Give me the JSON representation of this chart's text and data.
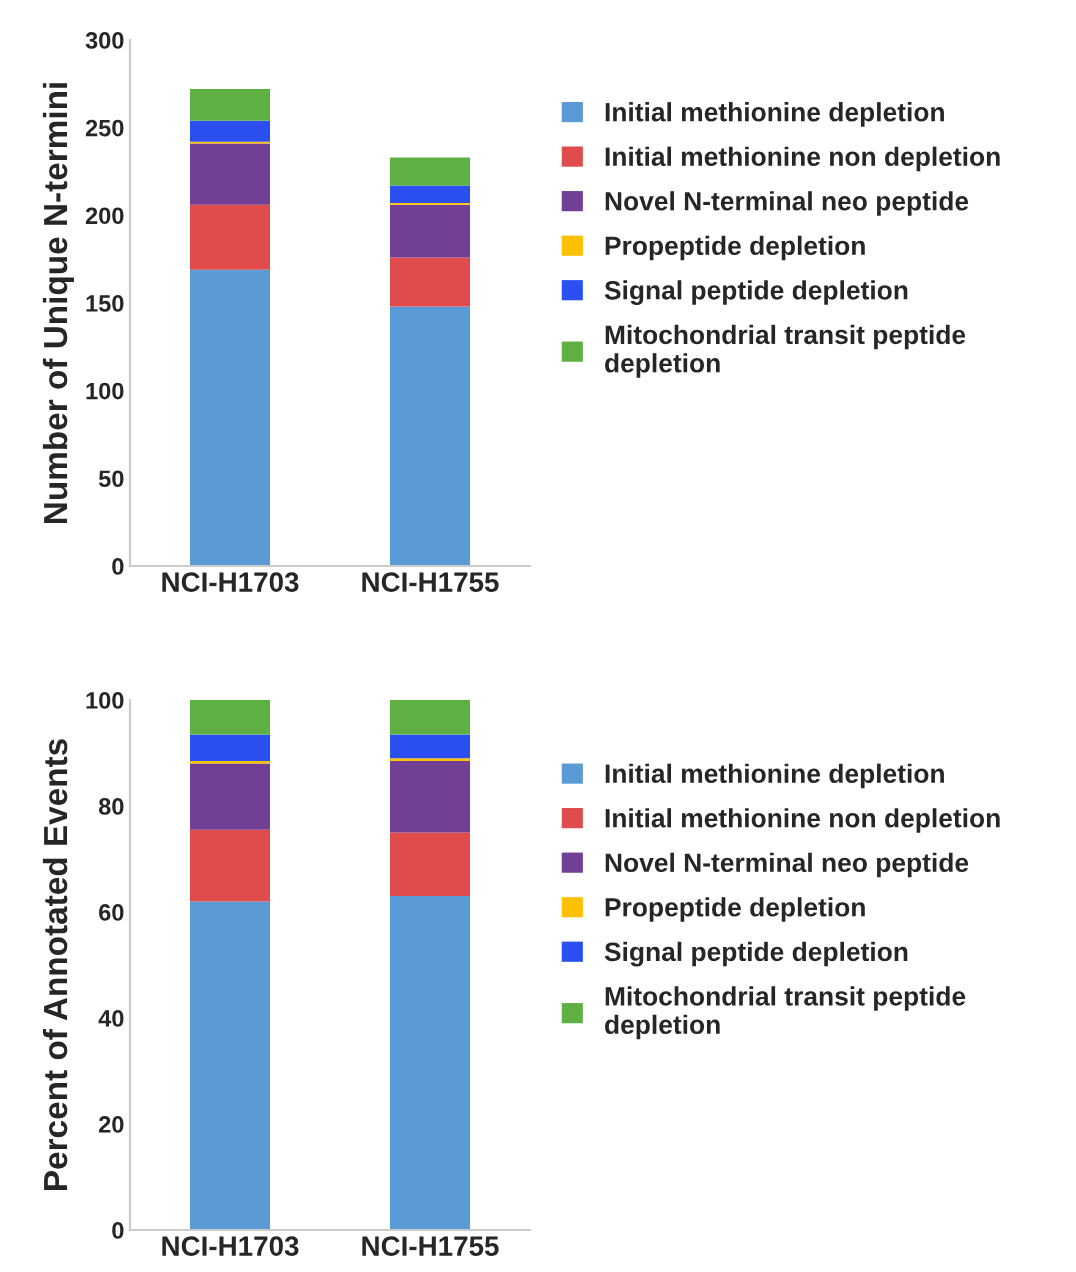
{
  "chart_data": [
    {
      "type": "bar",
      "stacked": true,
      "ylabel": "Number of Unique N-termini",
      "categories": [
        "NCI-H1703",
        "NCI-H1755"
      ],
      "ylim": [
        0,
        300
      ],
      "yticks": [
        0,
        50,
        100,
        150,
        200,
        250,
        300
      ],
      "legend": "right",
      "series": [
        {
          "name": "Initial methionine depletion",
          "color": "#5b9bd5",
          "values": [
            169,
            148
          ]
        },
        {
          "name": "Initial methionine non depletion",
          "color": "#e04b4b",
          "values": [
            37,
            28
          ]
        },
        {
          "name": "Novel N-terminal neo peptide",
          "color": "#713f93",
          "values": [
            35,
            30
          ]
        },
        {
          "name": "Propeptide depletion",
          "color": "#ffc000",
          "values": [
            1,
            1
          ]
        },
        {
          "name": "Signal peptide depletion",
          "color": "#2b4ff0",
          "values": [
            12,
            10
          ]
        },
        {
          "name": "Mitochondrial transit peptide depletion",
          "color": "#5fb043",
          "values": [
            18,
            16
          ]
        }
      ]
    },
    {
      "type": "bar",
      "stacked": true,
      "ylabel": "Percent of Annotated Events",
      "categories": [
        "NCI-H1703",
        "NCI-H1755"
      ],
      "ylim": [
        0,
        100
      ],
      "yticks": [
        0,
        20,
        40,
        60,
        80,
        100
      ],
      "legend": "right",
      "series": [
        {
          "name": "Initial methionine depletion",
          "color": "#5b9bd5",
          "values": [
            62,
            63
          ]
        },
        {
          "name": "Initial methionine non depletion",
          "color": "#e04b4b",
          "values": [
            13.5,
            12
          ]
        },
        {
          "name": "Novel N-terminal neo peptide",
          "color": "#713f93",
          "values": [
            12.5,
            13.5
          ]
        },
        {
          "name": "Propeptide depletion",
          "color": "#ffc000",
          "values": [
            0.5,
            0.5
          ]
        },
        {
          "name": "Signal peptide depletion",
          "color": "#2b4ff0",
          "values": [
            5,
            4.5
          ]
        },
        {
          "name": "Mitochondrial transit peptide depletion",
          "color": "#5fb043",
          "values": [
            6.5,
            6.5
          ]
        }
      ]
    }
  ]
}
